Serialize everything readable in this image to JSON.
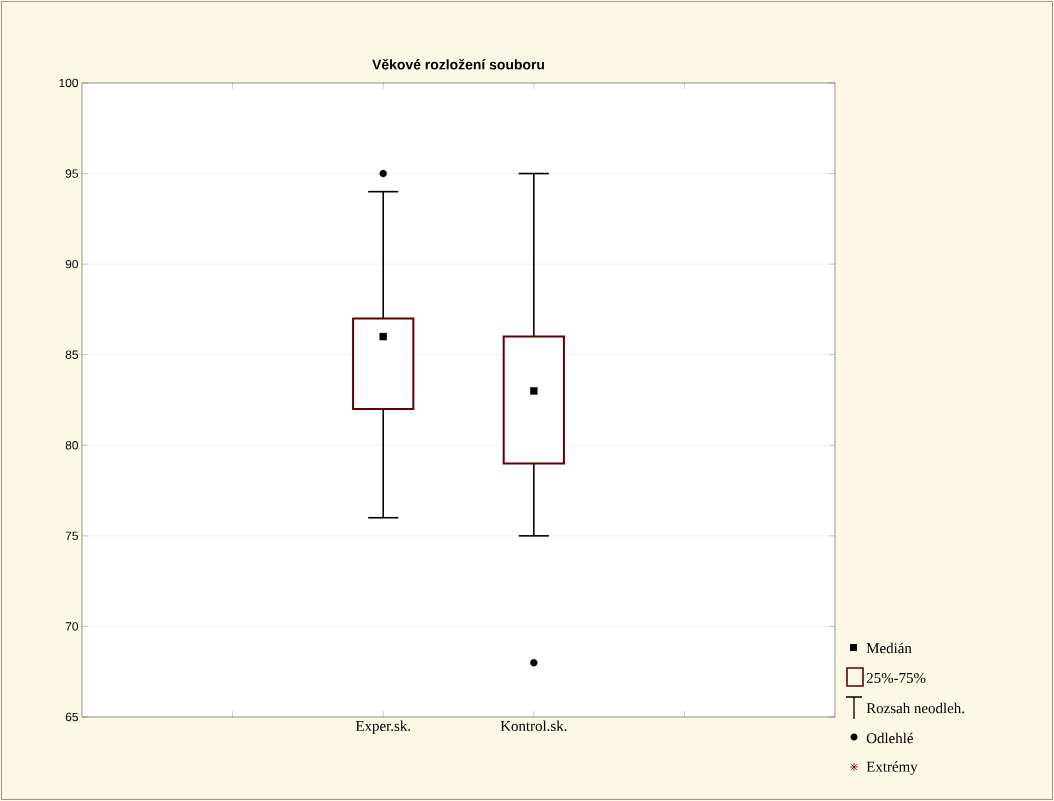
{
  "chart_data": {
    "type": "box",
    "title": "Věkové rozložení souboru",
    "categories": [
      "Exper.sk.",
      "Kontrol.sk."
    ],
    "series": [
      {
        "color": "#600000",
        "boxes": [
          {
            "low": 76,
            "q1": 82,
            "median": 86,
            "q3": 87,
            "high": 94,
            "outliers": [
              95
            ]
          },
          {
            "low": 75,
            "q1": 79,
            "median": 83,
            "q3": 86,
            "high": 95,
            "outliers": [
              68
            ]
          }
        ]
      }
    ],
    "ylim": [
      65,
      100
    ],
    "yticks": [
      65,
      70,
      75,
      80,
      85,
      90,
      95,
      100
    ],
    "grid": "y",
    "annotations": [
      "Medián",
      "25%-75%",
      "Rozsah neodleh.",
      "Odlehlé",
      "Extrémy"
    ]
  }
}
